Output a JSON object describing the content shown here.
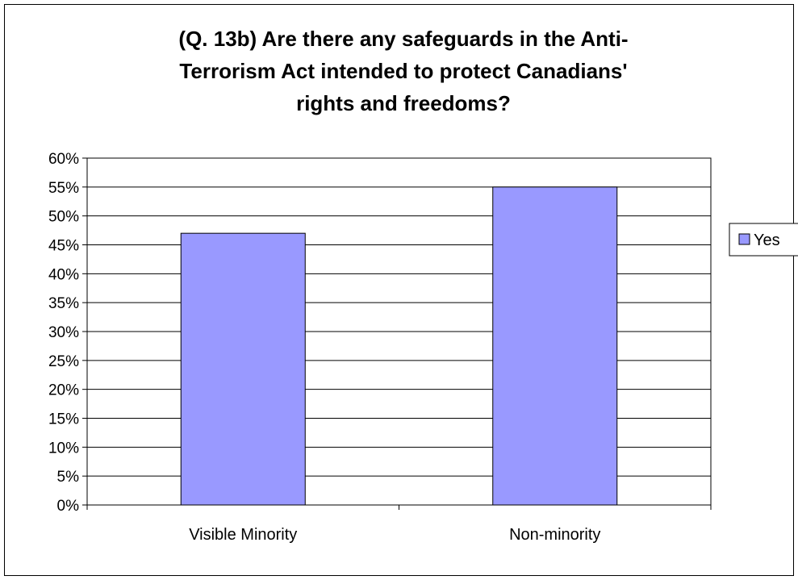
{
  "chart_data": {
    "type": "bar",
    "title_lines": [
      "(Q. 13b) Are there any safeguards in the Anti-",
      "Terrorism Act intended to protect Canadians'",
      "rights and freedoms?"
    ],
    "categories": [
      "Visible Minority",
      "Non-minority"
    ],
    "series": [
      {
        "name": "Yes",
        "values": [
          47,
          55
        ]
      }
    ],
    "ylim": [
      0,
      60
    ],
    "ytick_step": 5,
    "ytick_labels": [
      "0%",
      "5%",
      "10%",
      "15%",
      "20%",
      "25%",
      "30%",
      "35%",
      "40%",
      "45%",
      "50%",
      "55%",
      "60%"
    ],
    "grid": true,
    "legend_position": "right",
    "bar_color": "#9999ff"
  }
}
